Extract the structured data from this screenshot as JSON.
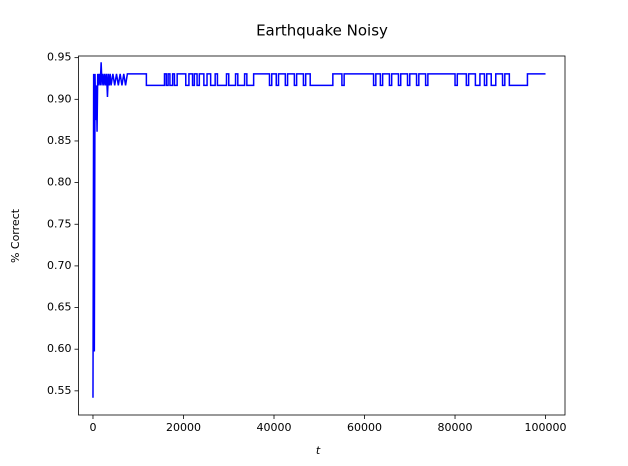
{
  "chart_data": {
    "type": "line",
    "title": "Earthquake Noisy",
    "x_label": "t",
    "y_label": "% Correct",
    "xlim": [
      -3200,
      104300
    ],
    "ylim": [
      0.521,
      0.952
    ],
    "xticks": [
      0,
      20000,
      40000,
      60000,
      80000,
      100000
    ],
    "yticks": [
      0.55,
      {
        "value": 0.6,
        "label": "0.60"
      },
      0.65,
      {
        "value": 0.7,
        "label": "0.70"
      },
      0.75,
      {
        "value": 0.8,
        "label": "0.80"
      },
      0.85,
      {
        "value": 0.9,
        "label": "0.90"
      },
      0.95
    ],
    "x": [
      0,
      150,
      300,
      450,
      600,
      750,
      900,
      1050,
      1200,
      1400,
      1600,
      1800,
      2000,
      2200,
      2400,
      2600,
      2800,
      3000,
      3200,
      3400,
      3600,
      3800,
      4000,
      4400,
      4800,
      5200,
      5600,
      6000,
      6400,
      6800,
      7200,
      7600,
      8000,
      11800,
      11800,
      15800,
      15800,
      16200,
      16200,
      16600,
      16600,
      17000,
      17000,
      17600,
      17600,
      18000,
      18000,
      18600,
      18600,
      20500,
      20500,
      21200,
      21200,
      22000,
      22000,
      22400,
      22400,
      23000,
      23000,
      23500,
      23500,
      24500,
      24500,
      25200,
      25200,
      26000,
      26000,
      27000,
      27000,
      27500,
      27500,
      29500,
      29500,
      30000,
      30000,
      31500,
      31500,
      32000,
      32000,
      33500,
      33500,
      34000,
      34000,
      35500,
      35500,
      39000,
      39000,
      39500,
      39500,
      40500,
      40500,
      41000,
      41000,
      42500,
      42500,
      43000,
      43000,
      44500,
      44500,
      45000,
      45000,
      46500,
      46500,
      47000,
      47000,
      48000,
      48000,
      53000,
      53000,
      55000,
      55000,
      55500,
      55500,
      62000,
      62000,
      62500,
      62500,
      63500,
      63500,
      64000,
      64000,
      65500,
      65500,
      66000,
      66000,
      67500,
      67500,
      68000,
      68000,
      69500,
      69500,
      70000,
      70000,
      71500,
      71500,
      72000,
      72000,
      73500,
      73500,
      74000,
      74000,
      80000,
      80000,
      80500,
      80500,
      82500,
      82500,
      83000,
      83000,
      84500,
      84500,
      85500,
      85500,
      86500,
      86500,
      87000,
      87000,
      88000,
      88000,
      89000,
      89000,
      90500,
      90500,
      91000,
      91000,
      92000,
      92000,
      96000,
      96000,
      100000
    ],
    "series": [
      {
        "color": "#0000ff",
        "values": [
          0.5417,
          0.9306,
          0.5972,
          0.9306,
          0.875,
          0.9167,
          0.8611,
          0.9306,
          0.9167,
          0.9306,
          0.9167,
          0.9444,
          0.9167,
          0.9306,
          0.9167,
          0.9306,
          0.9167,
          0.9306,
          0.9028,
          0.9306,
          0.9167,
          0.9306,
          0.9167,
          0.9306,
          0.9167,
          0.9306,
          0.9167,
          0.9306,
          0.9167,
          0.9306,
          0.9167,
          0.9306,
          0.9306,
          0.9306,
          0.9167,
          0.9167,
          0.9306,
          0.9306,
          0.9167,
          0.9167,
          0.9306,
          0.9306,
          0.9167,
          0.9167,
          0.9306,
          0.9306,
          0.9167,
          0.9167,
          0.9306,
          0.9306,
          0.9167,
          0.9167,
          0.9306,
          0.9306,
          0.9167,
          0.9167,
          0.9306,
          0.9306,
          0.9167,
          0.9167,
          0.9306,
          0.9306,
          0.9167,
          0.9167,
          0.9306,
          0.9306,
          0.9167,
          0.9167,
          0.9306,
          0.9306,
          0.9167,
          0.9167,
          0.9306,
          0.9306,
          0.9167,
          0.9167,
          0.9306,
          0.9306,
          0.9167,
          0.9167,
          0.9306,
          0.9306,
          0.9167,
          0.9167,
          0.9306,
          0.9306,
          0.9167,
          0.9167,
          0.9306,
          0.9306,
          0.9167,
          0.9167,
          0.9306,
          0.9306,
          0.9167,
          0.9167,
          0.9306,
          0.9306,
          0.9167,
          0.9167,
          0.9306,
          0.9306,
          0.9167,
          0.9167,
          0.9306,
          0.9306,
          0.9167,
          0.9167,
          0.9306,
          0.9306,
          0.9167,
          0.9167,
          0.9306,
          0.9306,
          0.9167,
          0.9167,
          0.9306,
          0.9306,
          0.9167,
          0.9167,
          0.9306,
          0.9306,
          0.9167,
          0.9167,
          0.9306,
          0.9306,
          0.9167,
          0.9167,
          0.9306,
          0.9306,
          0.9167,
          0.9167,
          0.9306,
          0.9306,
          0.9167,
          0.9167,
          0.9306,
          0.9306,
          0.9167,
          0.9167,
          0.9306,
          0.9306,
          0.9167,
          0.9167,
          0.9306,
          0.9306,
          0.9167,
          0.9167,
          0.9306,
          0.9306,
          0.9167,
          0.9167,
          0.9306,
          0.9306,
          0.9167,
          0.9167,
          0.9306,
          0.9306,
          0.9167,
          0.9167,
          0.9306,
          0.9306,
          0.9167,
          0.9167,
          0.9306,
          0.9306,
          0.9167,
          0.9167,
          0.9306,
          0.9306
        ]
      }
    ]
  }
}
